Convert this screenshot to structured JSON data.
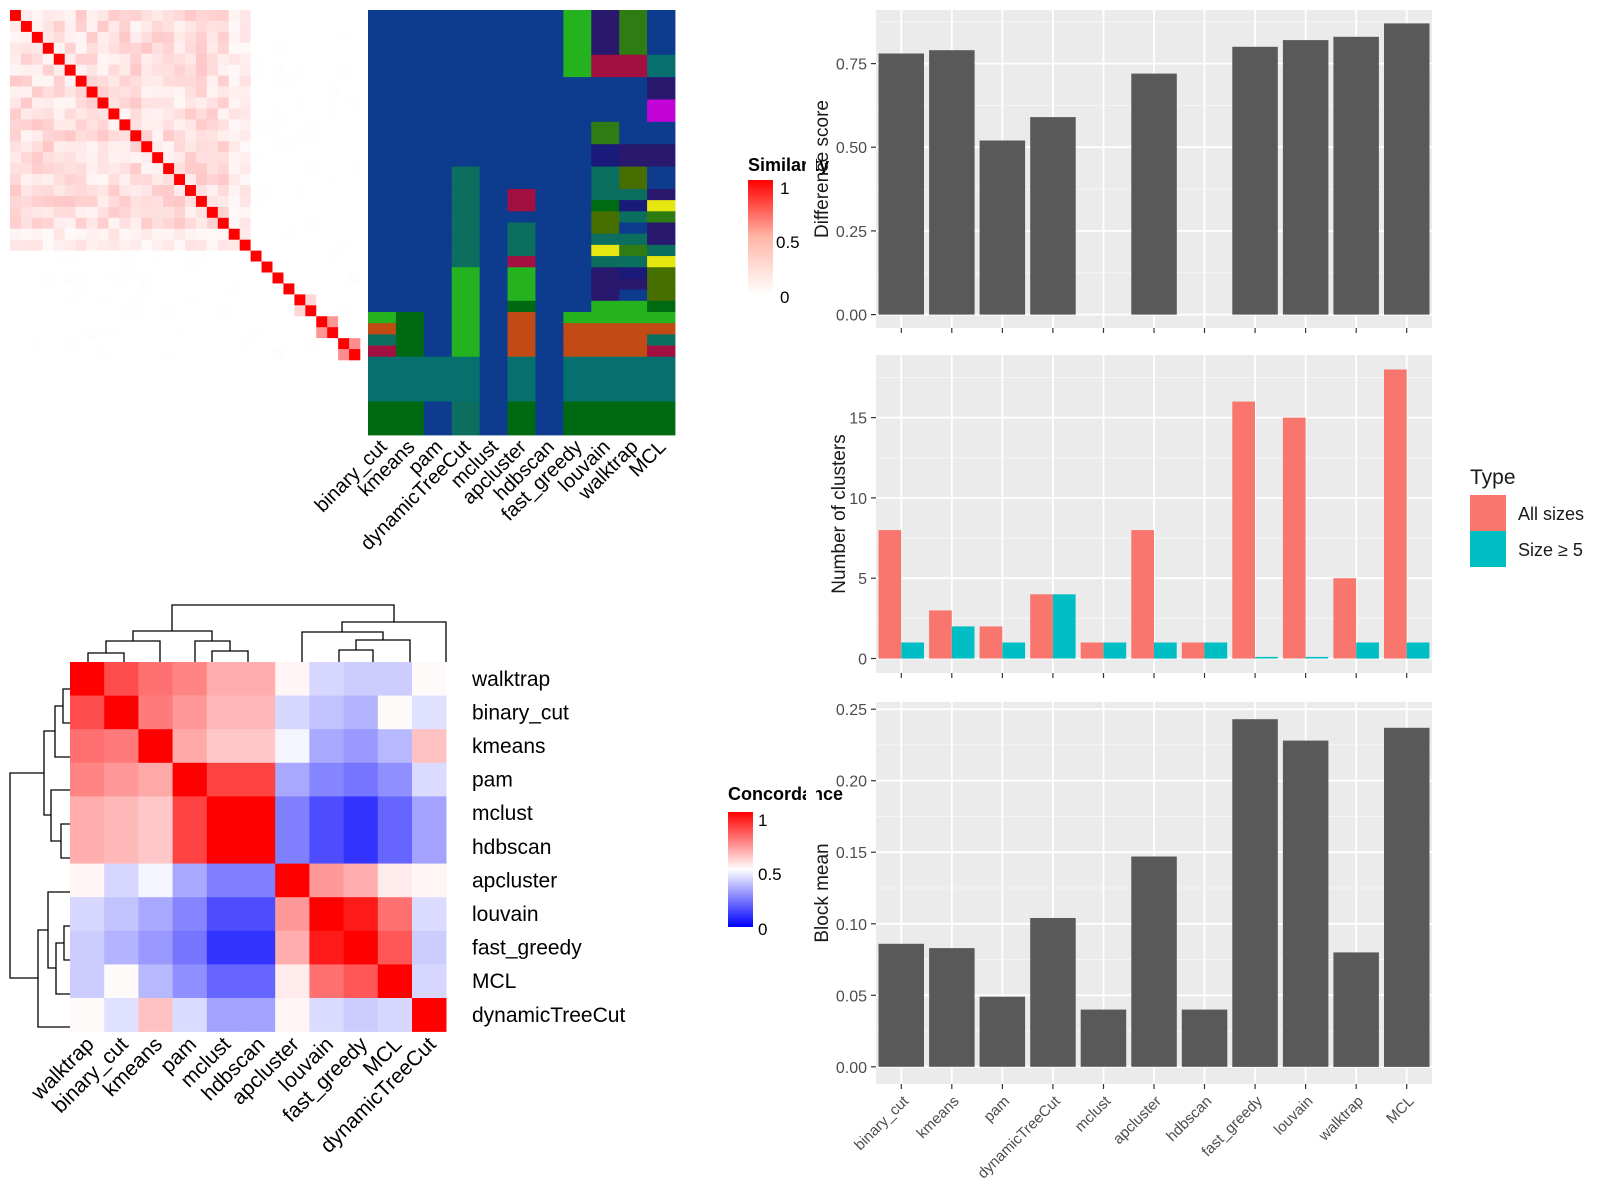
{
  "chart_data": [
    {
      "type": "heatmap",
      "panel": "similarity-heatmap",
      "legend_title": "Similarity",
      "legend_ticks": [
        "1",
        "0.5",
        "0"
      ],
      "colors": {
        "high": "#FF0000",
        "mid": "#FFB7A8",
        "low": "#FFFFFF"
      }
    },
    {
      "type": "table",
      "panel": "cluster-membership",
      "columns": [
        "binary_cut",
        "kmeans",
        "pam",
        "dynamicTreeCut",
        "mclust",
        "apcluster",
        "hdbscan",
        "fast_greedy",
        "louvain",
        "walktrap",
        "MCL"
      ],
      "palette": [
        "#0D3B8E",
        "#006A13",
        "#24B21E",
        "#0B6E5F",
        "#A30F40",
        "#C24A14",
        "#06706F",
        "#2E7C12",
        "#C403D9",
        "#E6E610",
        "#1A1A7A",
        "#28186E",
        "#466F00"
      ],
      "bands": [
        {
          "rows": 4,
          "cells": [
            0,
            0,
            0,
            0,
            0,
            0,
            0,
            2,
            11,
            7,
            0
          ]
        },
        {
          "rows": 2,
          "cells": [
            0,
            0,
            0,
            0,
            0,
            0,
            0,
            2,
            4,
            4,
            6
          ]
        },
        {
          "rows": 2,
          "cells": [
            0,
            0,
            0,
            0,
            0,
            0,
            0,
            0,
            0,
            0,
            11
          ]
        },
        {
          "rows": 2,
          "cells": [
            0,
            0,
            0,
            0,
            0,
            0,
            0,
            0,
            0,
            0,
            8
          ]
        },
        {
          "rows": 2,
          "cells": [
            0,
            0,
            0,
            0,
            0,
            0,
            0,
            0,
            7,
            0,
            0
          ]
        },
        {
          "rows": 2,
          "cells": [
            0,
            0,
            0,
            0,
            0,
            0,
            0,
            0,
            10,
            11,
            11
          ]
        },
        {
          "rows": 2,
          "cells": [
            0,
            0,
            0,
            3,
            0,
            0,
            0,
            0,
            3,
            12,
            0
          ]
        },
        {
          "rows": 1,
          "cells": [
            0,
            0,
            0,
            3,
            0,
            4,
            0,
            0,
            3,
            3,
            11
          ]
        },
        {
          "rows": 1,
          "cells": [
            0,
            0,
            0,
            3,
            0,
            4,
            0,
            0,
            1,
            10,
            9
          ]
        },
        {
          "rows": 1,
          "cells": [
            0,
            0,
            0,
            3,
            0,
            0,
            0,
            0,
            12,
            3,
            7
          ]
        },
        {
          "rows": 1,
          "cells": [
            0,
            0,
            0,
            3,
            0,
            3,
            0,
            0,
            12,
            0,
            11
          ]
        },
        {
          "rows": 1,
          "cells": [
            0,
            0,
            0,
            3,
            0,
            3,
            0,
            0,
            3,
            3,
            11
          ]
        },
        {
          "rows": 1,
          "cells": [
            0,
            0,
            0,
            3,
            0,
            3,
            0,
            0,
            9,
            7,
            3
          ]
        },
        {
          "rows": 1,
          "cells": [
            0,
            0,
            0,
            3,
            0,
            4,
            0,
            0,
            3,
            3,
            9
          ]
        },
        {
          "rows": 1,
          "cells": [
            0,
            0,
            0,
            2,
            0,
            2,
            0,
            0,
            11,
            10,
            12
          ]
        },
        {
          "rows": 1,
          "cells": [
            0,
            0,
            0,
            2,
            0,
            2,
            0,
            0,
            11,
            11,
            12
          ]
        },
        {
          "rows": 1,
          "cells": [
            0,
            0,
            0,
            2,
            0,
            2,
            0,
            0,
            11,
            0,
            12
          ]
        },
        {
          "rows": 1,
          "cells": [
            0,
            0,
            0,
            2,
            0,
            1,
            0,
            0,
            2,
            2,
            1
          ]
        },
        {
          "rows": 1,
          "cells": [
            2,
            1,
            0,
            2,
            0,
            5,
            0,
            2,
            2,
            2,
            2
          ]
        },
        {
          "rows": 1,
          "cells": [
            5,
            1,
            0,
            2,
            0,
            5,
            0,
            5,
            5,
            5,
            5
          ]
        },
        {
          "rows": 1,
          "cells": [
            3,
            1,
            0,
            2,
            0,
            5,
            0,
            5,
            5,
            5,
            3
          ]
        },
        {
          "rows": 1,
          "cells": [
            4,
            1,
            0,
            2,
            0,
            5,
            0,
            5,
            5,
            5,
            4
          ]
        },
        {
          "rows": 4,
          "cells": [
            6,
            6,
            6,
            6,
            0,
            6,
            0,
            6,
            6,
            6,
            6
          ]
        },
        {
          "rows": 3,
          "cells": [
            1,
            1,
            0,
            3,
            0,
            1,
            0,
            1,
            1,
            1,
            1
          ]
        }
      ]
    },
    {
      "type": "heatmap",
      "panel": "concordance-heatmap",
      "legend_title": "Concordance",
      "legend_ticks": [
        "1",
        "0.5",
        "0"
      ],
      "row_labels": [
        "walktrap",
        "binary_cut",
        "kmeans",
        "pam",
        "mclust",
        "hdbscan",
        "apcluster",
        "louvain",
        "fast_greedy",
        "MCL",
        "dynamicTreeCut"
      ],
      "col_labels": [
        "walktrap",
        "binary_cut",
        "kmeans",
        "pam",
        "mclust",
        "hdbscan",
        "apcluster",
        "louvain",
        "fast_greedy",
        "MCL",
        "dynamicTreeCut"
      ],
      "values": [
        [
          1.0,
          0.85,
          0.78,
          0.74,
          0.66,
          0.66,
          0.52,
          0.42,
          0.4,
          0.4,
          0.51
        ],
        [
          0.85,
          1.0,
          0.76,
          0.7,
          0.64,
          0.64,
          0.42,
          0.38,
          0.35,
          0.51,
          0.44
        ],
        [
          0.78,
          0.76,
          1.0,
          0.67,
          0.61,
          0.61,
          0.48,
          0.33,
          0.3,
          0.36,
          0.62
        ],
        [
          0.74,
          0.7,
          0.67,
          1.0,
          0.87,
          0.87,
          0.33,
          0.26,
          0.23,
          0.28,
          0.43
        ],
        [
          0.66,
          0.64,
          0.61,
          0.87,
          1.0,
          1.0,
          0.25,
          0.15,
          0.1,
          0.2,
          0.32
        ],
        [
          0.66,
          0.64,
          0.61,
          0.87,
          1.0,
          1.0,
          0.25,
          0.15,
          0.1,
          0.2,
          0.32
        ],
        [
          0.52,
          0.42,
          0.48,
          0.33,
          0.25,
          0.25,
          1.0,
          0.7,
          0.66,
          0.54,
          0.52
        ],
        [
          0.42,
          0.38,
          0.33,
          0.26,
          0.15,
          0.15,
          0.7,
          1.0,
          0.95,
          0.78,
          0.43
        ],
        [
          0.4,
          0.35,
          0.3,
          0.23,
          0.1,
          0.1,
          0.66,
          0.95,
          1.0,
          0.83,
          0.4
        ],
        [
          0.4,
          0.51,
          0.36,
          0.28,
          0.2,
          0.2,
          0.54,
          0.78,
          0.83,
          1.0,
          0.42
        ],
        [
          0.51,
          0.44,
          0.62,
          0.43,
          0.32,
          0.32,
          0.52,
          0.43,
          0.4,
          0.42,
          1.0
        ]
      ],
      "colors": {
        "high": "#FF0000",
        "mid": "#FFFFFF",
        "low": "#0000FF"
      }
    },
    {
      "type": "bar",
      "panel": "difference-score",
      "categories": [
        "binary_cut",
        "kmeans",
        "pam",
        "dynamicTreeCut",
        "mclust",
        "apcluster",
        "hdbscan",
        "fast_greedy",
        "louvain",
        "walktrap",
        "MCL"
      ],
      "values": [
        0.78,
        0.79,
        0.52,
        0.59,
        0,
        0.72,
        0,
        0.8,
        0.82,
        0.83,
        0.87
      ],
      "ylabel": "Difference score",
      "ylim": [
        -0.04,
        0.91
      ],
      "yticks": [
        0.0,
        0.25,
        0.5,
        0.75
      ],
      "ytick_labels": [
        "0.00",
        "0.25",
        "0.50",
        "0.75"
      ],
      "grid": true,
      "color": "#595959"
    },
    {
      "type": "bar",
      "panel": "number-of-clusters",
      "categories": [
        "binary_cut",
        "kmeans",
        "pam",
        "dynamicTreeCut",
        "mclust",
        "apcluster",
        "hdbscan",
        "fast_greedy",
        "louvain",
        "walktrap",
        "MCL"
      ],
      "series": [
        {
          "name": "All sizes",
          "values": [
            8,
            3,
            2,
            4,
            1,
            8,
            1,
            16,
            15,
            5,
            18
          ],
          "color": "#F8766D"
        },
        {
          "name": "Size ≥ 5",
          "values": [
            1,
            2,
            1,
            4,
            1,
            1,
            1,
            0.1,
            0.1,
            1,
            1
          ],
          "color": "#00BFC4"
        }
      ],
      "ylabel": "Number of clusters",
      "ylim": [
        -0.9,
        18.9
      ],
      "yticks": [
        0,
        5,
        10,
        15
      ],
      "ytick_labels": [
        "0",
        "5",
        "10",
        "15"
      ],
      "legend_title": "Type",
      "legend_position": "right",
      "grid": true
    },
    {
      "type": "bar",
      "panel": "block-mean",
      "categories": [
        "binary_cut",
        "kmeans",
        "pam",
        "dynamicTreeCut",
        "mclust",
        "apcluster",
        "hdbscan",
        "fast_greedy",
        "louvain",
        "walktrap",
        "MCL"
      ],
      "values": [
        0.086,
        0.083,
        0.049,
        0.104,
        0.04,
        0.147,
        0.04,
        0.243,
        0.228,
        0.08,
        0.237
      ],
      "ylabel": "Block mean",
      "ylim": [
        -0.012,
        0.255
      ],
      "yticks": [
        0.0,
        0.05,
        0.1,
        0.15,
        0.2,
        0.25
      ],
      "ytick_labels": [
        "0.00",
        "0.05",
        "0.10",
        "0.15",
        "0.20",
        "0.25"
      ],
      "grid": true,
      "color": "#595959"
    }
  ]
}
